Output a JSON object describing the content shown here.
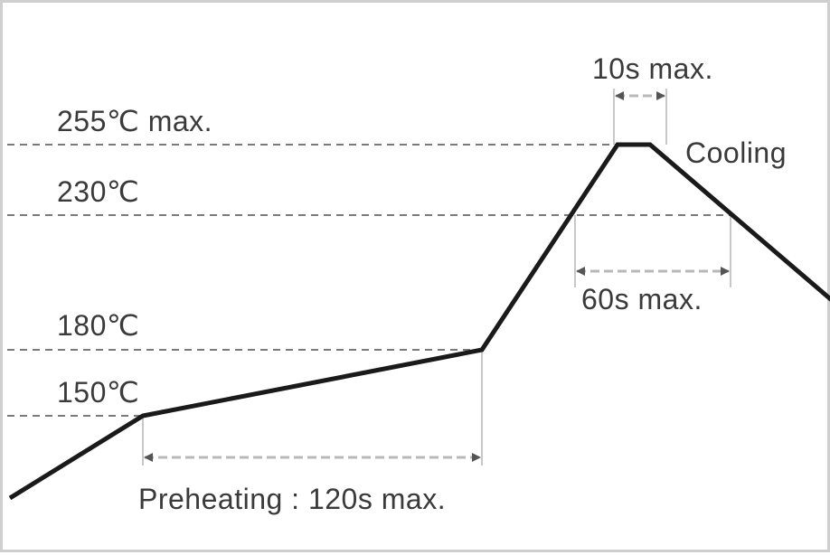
{
  "diagram": {
    "temperatures": [
      {
        "key": "peak",
        "label": "255℃ max."
      },
      {
        "key": "reflow",
        "label": "230℃"
      },
      {
        "key": "preheat_end",
        "label": "180℃"
      },
      {
        "key": "preheat_start",
        "label": "150℃"
      }
    ],
    "phases": {
      "peak_time": "10s max.",
      "reflow_time": "60s max.",
      "preheating": "Preheating : 120s max.",
      "cooling": "Cooling"
    },
    "colors": {
      "profile": "#1a1a1a",
      "guide": "#7a7a7a",
      "text": "#3a3a3a"
    }
  }
}
